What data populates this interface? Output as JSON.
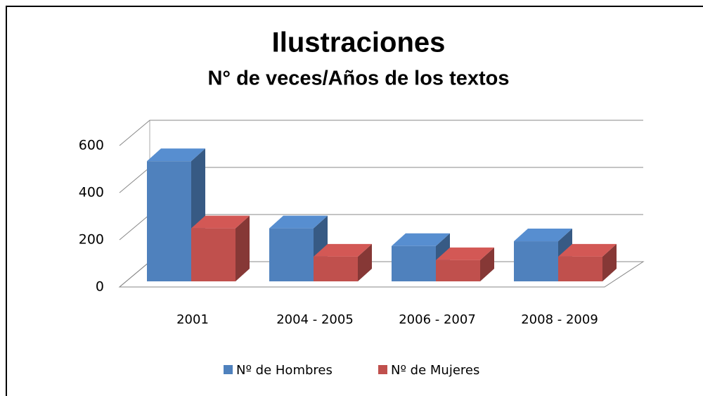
{
  "chart_data": {
    "type": "bar3d",
    "title": "Ilustraciones",
    "subtitle": "N° de veces/Años de los textos",
    "categories": [
      "2001",
      "2004 - 2005",
      "2006 - 2007",
      "2008 - 2009"
    ],
    "series": [
      {
        "name": "Nº de Hombres",
        "color": "#4f81bd",
        "values": [
          510,
          225,
          150,
          170
        ]
      },
      {
        "name": "Nº de Mujeres",
        "color": "#c0504d",
        "values": [
          225,
          105,
          90,
          105
        ]
      }
    ],
    "ylim": [
      0,
      600
    ],
    "yticks": [
      0,
      200,
      400,
      600
    ],
    "grid": true,
    "legend": "bottom"
  }
}
